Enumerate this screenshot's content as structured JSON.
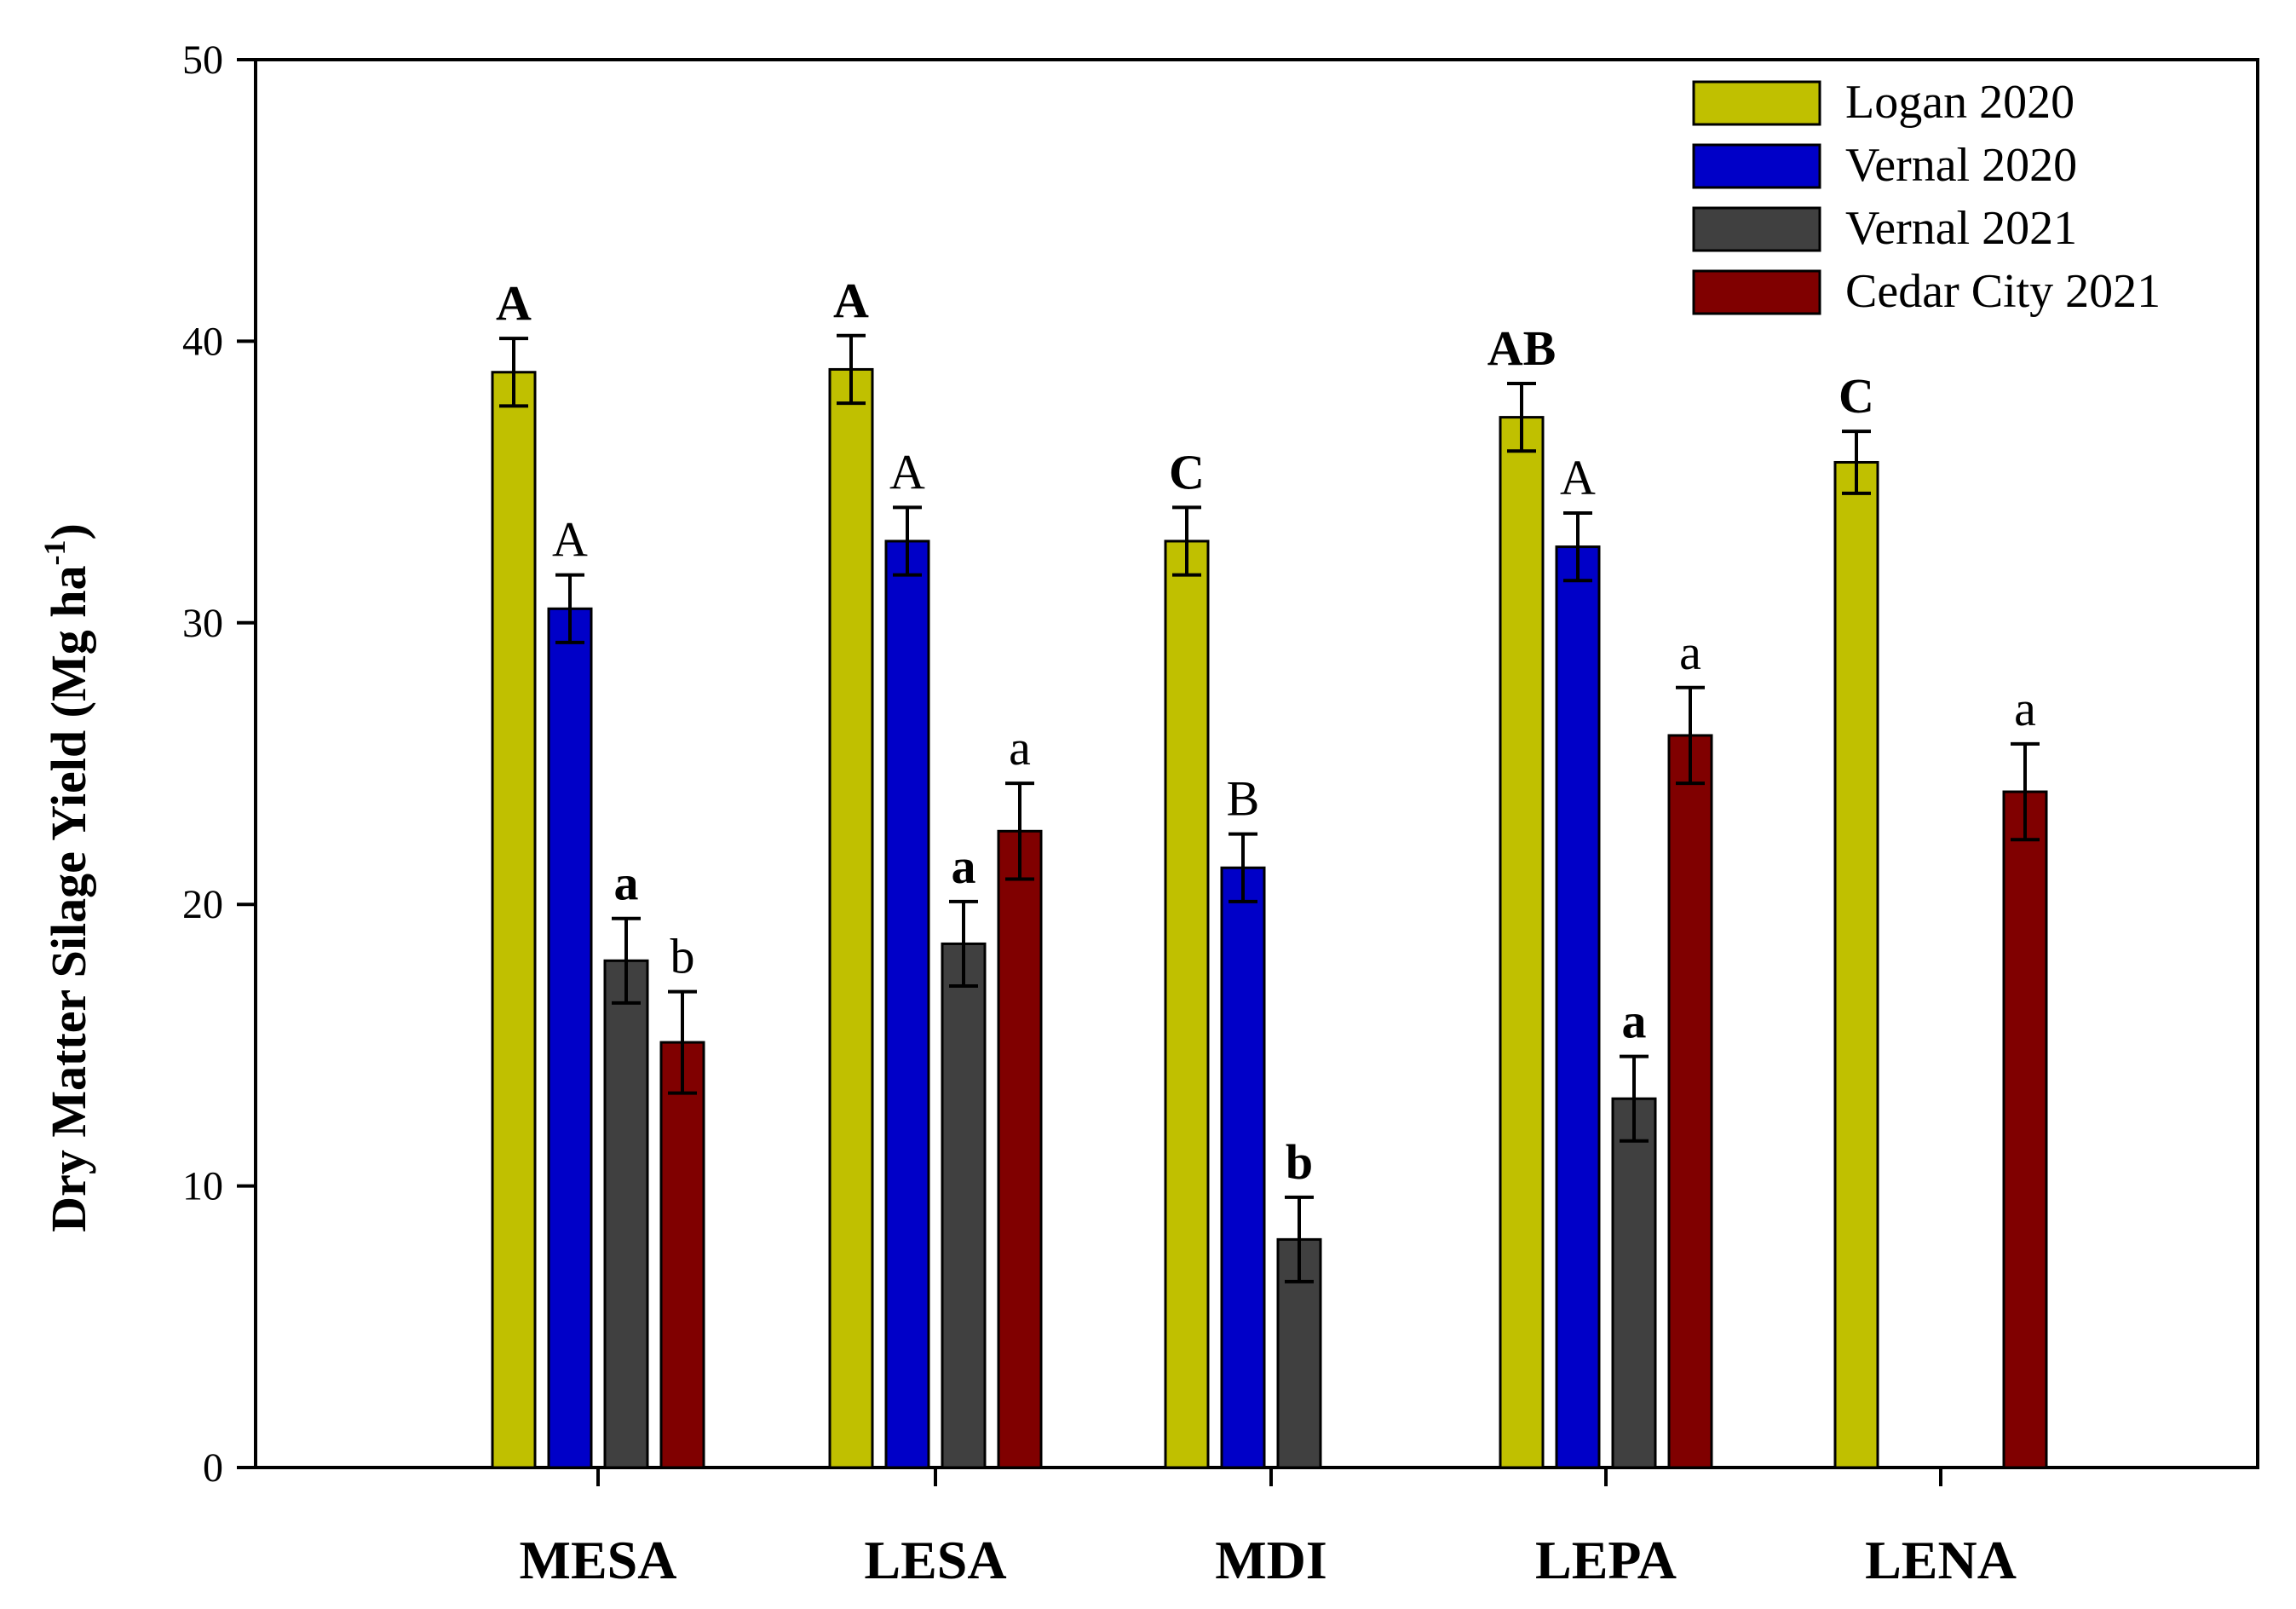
{
  "chart_data": {
    "type": "bar",
    "title": "",
    "xlabel": "",
    "ylabel": "Dry Matter Silage Yield (Mg ha",
    "ylabel_superscript": "-1",
    "ylabel_suffix": ")",
    "ylim": [
      0,
      50
    ],
    "yticks": [
      0,
      10,
      20,
      30,
      40,
      50
    ],
    "ytick_labels": [
      "0",
      "10",
      "20",
      "30",
      "40",
      "50"
    ],
    "grid": false,
    "legend_position": "top-right",
    "categories": [
      "MESA",
      "LESA",
      "MDI",
      "LEPA",
      "LENA"
    ],
    "series": [
      {
        "name": "Logan 2020",
        "color": "#c0c000",
        "values": [
          38.9,
          39.0,
          32.9,
          37.3,
          35.7
        ],
        "errors": [
          1.2,
          1.2,
          1.2,
          1.2,
          1.1
        ],
        "letters": [
          "A",
          "A",
          "C",
          "AB",
          "C"
        ],
        "letter_bold": true
      },
      {
        "name": "Vernal 2020",
        "color": "#0000c8",
        "values": [
          30.5,
          32.9,
          21.3,
          32.7,
          null
        ],
        "errors": [
          1.2,
          1.2,
          1.2,
          1.2,
          null
        ],
        "letters": [
          "A",
          "A",
          "B",
          "A",
          null
        ],
        "letter_bold": false
      },
      {
        "name": "Vernal 2021",
        "color": "#404040",
        "values": [
          18.0,
          18.6,
          8.1,
          13.1,
          null
        ],
        "errors": [
          1.5,
          1.5,
          1.5,
          1.5,
          null
        ],
        "letters": [
          "a",
          "a",
          "b",
          "a",
          null
        ],
        "letter_bold": true
      },
      {
        "name": "Cedar City 2021",
        "color": "#800000",
        "values": [
          15.1,
          22.6,
          null,
          26.0,
          24.0
        ],
        "errors": [
          1.8,
          1.7,
          null,
          1.7,
          1.7
        ],
        "letters": [
          "b",
          "a",
          null,
          "a",
          "a"
        ],
        "letter_bold": false
      }
    ]
  }
}
